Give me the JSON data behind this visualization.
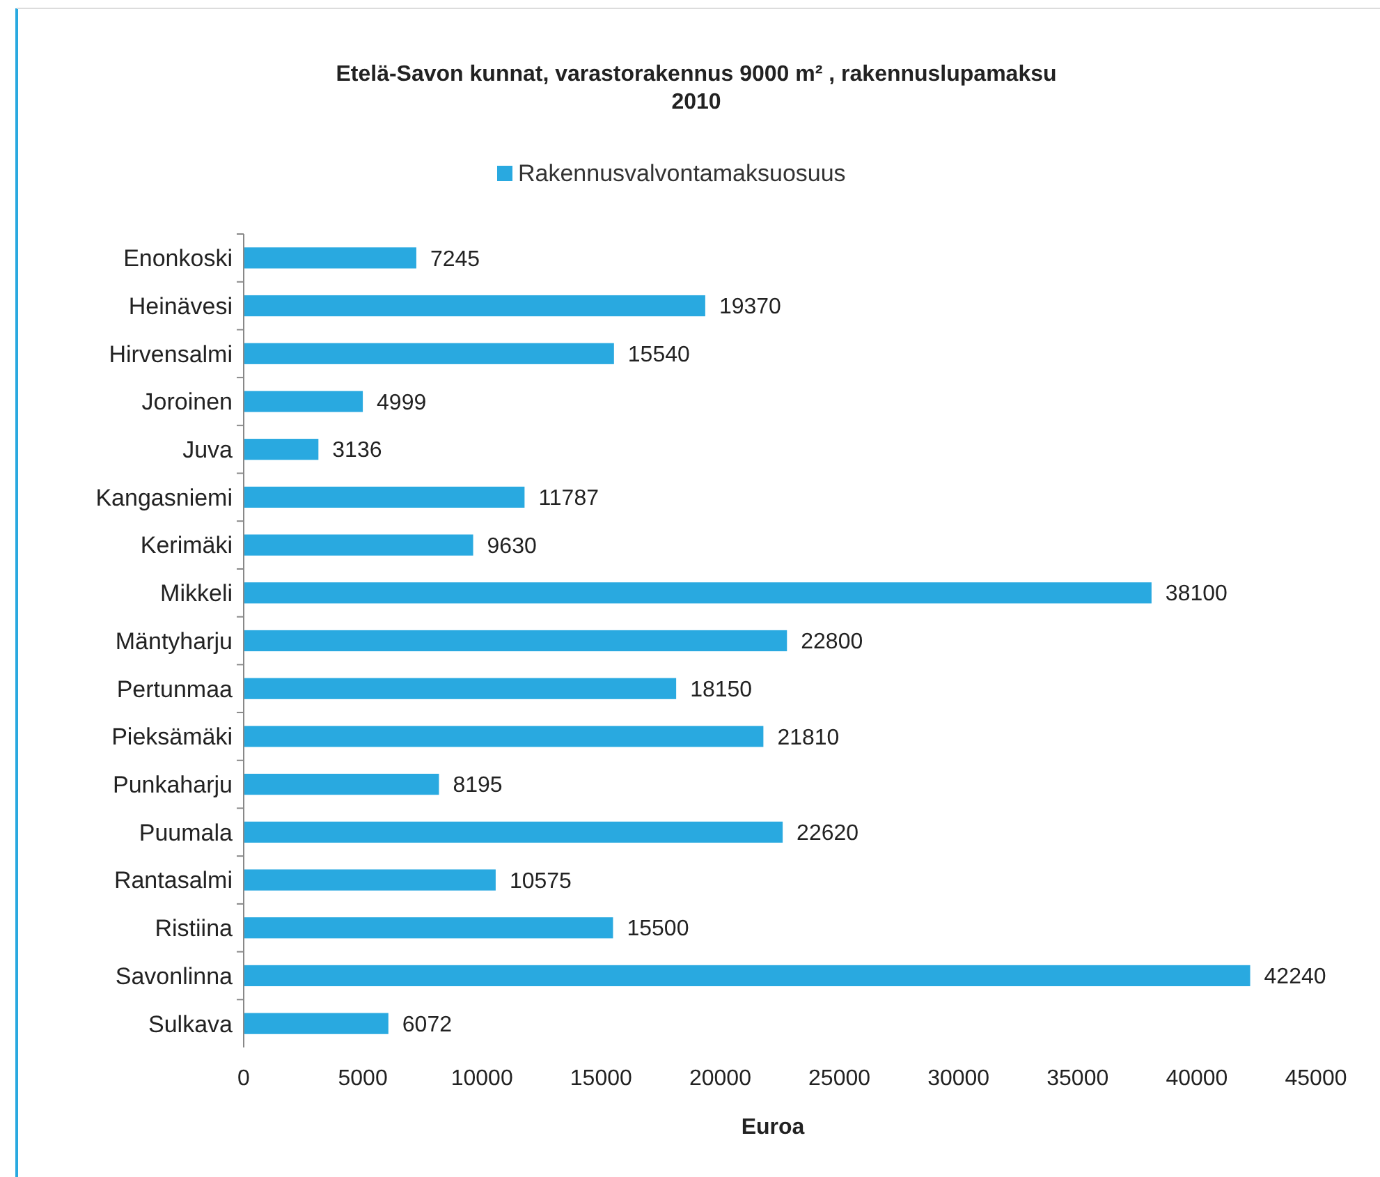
{
  "chart_data": {
    "type": "bar",
    "orientation": "horizontal",
    "title": "Etelä-Savon kunnat, varastorakennus 9000 m² , rakennuslupamaksu 2010",
    "xlabel": "Euroa",
    "categories": [
      "Enonkoski",
      "Heinävesi",
      "Hirvensalmi",
      "Joroinen",
      "Juva",
      "Kangasniemi",
      "Kerimäki",
      "Mikkeli",
      "Mäntyharju",
      "Pertunmaa",
      "Pieksämäki",
      "Punkaharju",
      "Puumala",
      "Rantasalmi",
      "Ristiina",
      "Savonlinna",
      "Sulkava"
    ],
    "series": [
      {
        "name": "Rakennusvalvontamaksuosuus",
        "color": "#29a9e0",
        "values": [
          7245,
          19370,
          15540,
          4999,
          3136,
          11787,
          9630,
          38100,
          22800,
          18150,
          21810,
          8195,
          22620,
          10575,
          15500,
          42240,
          6072
        ]
      }
    ],
    "xlim": [
      0,
      45000
    ],
    "xticks": [
      0,
      5000,
      10000,
      15000,
      20000,
      25000,
      30000,
      35000,
      40000,
      45000
    ],
    "data_labels": true,
    "legend": "top",
    "grid": false
  }
}
